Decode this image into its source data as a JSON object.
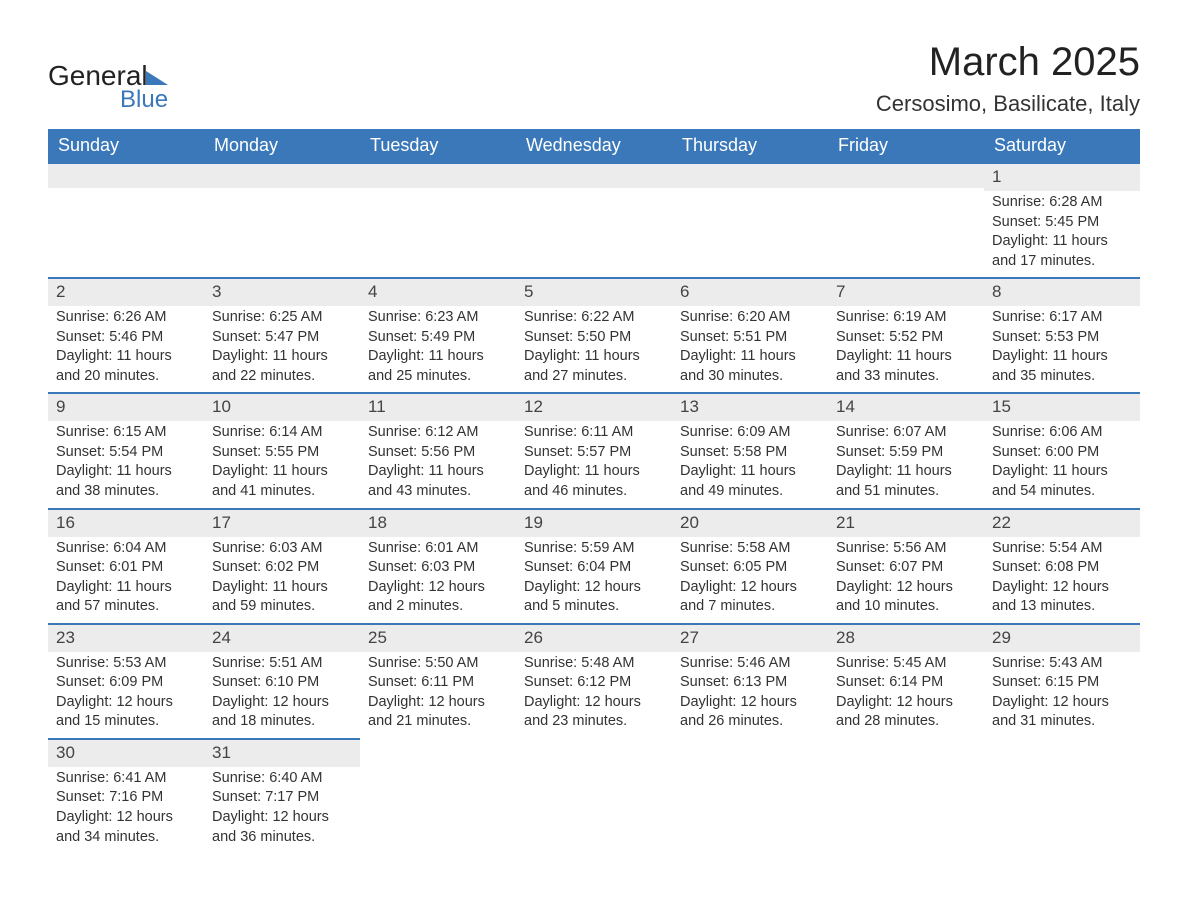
{
  "logo": {
    "main": "General",
    "sub": "Blue"
  },
  "title": "March 2025",
  "location": "Cersosimo, Basilicate, Italy",
  "colors": {
    "header_bg": "#3a78b9",
    "header_fg": "#ffffff",
    "row_sep": "#3a78b9",
    "daynum_bg": "#ececec",
    "text": "#333333",
    "page_bg": "#ffffff"
  },
  "typography": {
    "title_fontsize": 40,
    "location_fontsize": 22,
    "weekday_fontsize": 18,
    "daynum_fontsize": 17,
    "body_fontsize": 14.5
  },
  "weekdays": [
    "Sunday",
    "Monday",
    "Tuesday",
    "Wednesday",
    "Thursday",
    "Friday",
    "Saturday"
  ],
  "weeks": [
    [
      null,
      null,
      null,
      null,
      null,
      null,
      {
        "n": "1",
        "sr": "Sunrise: 6:28 AM",
        "ss": "Sunset: 5:45 PM",
        "d1": "Daylight: 11 hours",
        "d2": "and 17 minutes."
      }
    ],
    [
      {
        "n": "2",
        "sr": "Sunrise: 6:26 AM",
        "ss": "Sunset: 5:46 PM",
        "d1": "Daylight: 11 hours",
        "d2": "and 20 minutes."
      },
      {
        "n": "3",
        "sr": "Sunrise: 6:25 AM",
        "ss": "Sunset: 5:47 PM",
        "d1": "Daylight: 11 hours",
        "d2": "and 22 minutes."
      },
      {
        "n": "4",
        "sr": "Sunrise: 6:23 AM",
        "ss": "Sunset: 5:49 PM",
        "d1": "Daylight: 11 hours",
        "d2": "and 25 minutes."
      },
      {
        "n": "5",
        "sr": "Sunrise: 6:22 AM",
        "ss": "Sunset: 5:50 PM",
        "d1": "Daylight: 11 hours",
        "d2": "and 27 minutes."
      },
      {
        "n": "6",
        "sr": "Sunrise: 6:20 AM",
        "ss": "Sunset: 5:51 PM",
        "d1": "Daylight: 11 hours",
        "d2": "and 30 minutes."
      },
      {
        "n": "7",
        "sr": "Sunrise: 6:19 AM",
        "ss": "Sunset: 5:52 PM",
        "d1": "Daylight: 11 hours",
        "d2": "and 33 minutes."
      },
      {
        "n": "8",
        "sr": "Sunrise: 6:17 AM",
        "ss": "Sunset: 5:53 PM",
        "d1": "Daylight: 11 hours",
        "d2": "and 35 minutes."
      }
    ],
    [
      {
        "n": "9",
        "sr": "Sunrise: 6:15 AM",
        "ss": "Sunset: 5:54 PM",
        "d1": "Daylight: 11 hours",
        "d2": "and 38 minutes."
      },
      {
        "n": "10",
        "sr": "Sunrise: 6:14 AM",
        "ss": "Sunset: 5:55 PM",
        "d1": "Daylight: 11 hours",
        "d2": "and 41 minutes."
      },
      {
        "n": "11",
        "sr": "Sunrise: 6:12 AM",
        "ss": "Sunset: 5:56 PM",
        "d1": "Daylight: 11 hours",
        "d2": "and 43 minutes."
      },
      {
        "n": "12",
        "sr": "Sunrise: 6:11 AM",
        "ss": "Sunset: 5:57 PM",
        "d1": "Daylight: 11 hours",
        "d2": "and 46 minutes."
      },
      {
        "n": "13",
        "sr": "Sunrise: 6:09 AM",
        "ss": "Sunset: 5:58 PM",
        "d1": "Daylight: 11 hours",
        "d2": "and 49 minutes."
      },
      {
        "n": "14",
        "sr": "Sunrise: 6:07 AM",
        "ss": "Sunset: 5:59 PM",
        "d1": "Daylight: 11 hours",
        "d2": "and 51 minutes."
      },
      {
        "n": "15",
        "sr": "Sunrise: 6:06 AM",
        "ss": "Sunset: 6:00 PM",
        "d1": "Daylight: 11 hours",
        "d2": "and 54 minutes."
      }
    ],
    [
      {
        "n": "16",
        "sr": "Sunrise: 6:04 AM",
        "ss": "Sunset: 6:01 PM",
        "d1": "Daylight: 11 hours",
        "d2": "and 57 minutes."
      },
      {
        "n": "17",
        "sr": "Sunrise: 6:03 AM",
        "ss": "Sunset: 6:02 PM",
        "d1": "Daylight: 11 hours",
        "d2": "and 59 minutes."
      },
      {
        "n": "18",
        "sr": "Sunrise: 6:01 AM",
        "ss": "Sunset: 6:03 PM",
        "d1": "Daylight: 12 hours",
        "d2": "and 2 minutes."
      },
      {
        "n": "19",
        "sr": "Sunrise: 5:59 AM",
        "ss": "Sunset: 6:04 PM",
        "d1": "Daylight: 12 hours",
        "d2": "and 5 minutes."
      },
      {
        "n": "20",
        "sr": "Sunrise: 5:58 AM",
        "ss": "Sunset: 6:05 PM",
        "d1": "Daylight: 12 hours",
        "d2": "and 7 minutes."
      },
      {
        "n": "21",
        "sr": "Sunrise: 5:56 AM",
        "ss": "Sunset: 6:07 PM",
        "d1": "Daylight: 12 hours",
        "d2": "and 10 minutes."
      },
      {
        "n": "22",
        "sr": "Sunrise: 5:54 AM",
        "ss": "Sunset: 6:08 PM",
        "d1": "Daylight: 12 hours",
        "d2": "and 13 minutes."
      }
    ],
    [
      {
        "n": "23",
        "sr": "Sunrise: 5:53 AM",
        "ss": "Sunset: 6:09 PM",
        "d1": "Daylight: 12 hours",
        "d2": "and 15 minutes."
      },
      {
        "n": "24",
        "sr": "Sunrise: 5:51 AM",
        "ss": "Sunset: 6:10 PM",
        "d1": "Daylight: 12 hours",
        "d2": "and 18 minutes."
      },
      {
        "n": "25",
        "sr": "Sunrise: 5:50 AM",
        "ss": "Sunset: 6:11 PM",
        "d1": "Daylight: 12 hours",
        "d2": "and 21 minutes."
      },
      {
        "n": "26",
        "sr": "Sunrise: 5:48 AM",
        "ss": "Sunset: 6:12 PM",
        "d1": "Daylight: 12 hours",
        "d2": "and 23 minutes."
      },
      {
        "n": "27",
        "sr": "Sunrise: 5:46 AM",
        "ss": "Sunset: 6:13 PM",
        "d1": "Daylight: 12 hours",
        "d2": "and 26 minutes."
      },
      {
        "n": "28",
        "sr": "Sunrise: 5:45 AM",
        "ss": "Sunset: 6:14 PM",
        "d1": "Daylight: 12 hours",
        "d2": "and 28 minutes."
      },
      {
        "n": "29",
        "sr": "Sunrise: 5:43 AM",
        "ss": "Sunset: 6:15 PM",
        "d1": "Daylight: 12 hours",
        "d2": "and 31 minutes."
      }
    ],
    [
      {
        "n": "30",
        "sr": "Sunrise: 6:41 AM",
        "ss": "Sunset: 7:16 PM",
        "d1": "Daylight: 12 hours",
        "d2": "and 34 minutes."
      },
      {
        "n": "31",
        "sr": "Sunrise: 6:40 AM",
        "ss": "Sunset: 7:17 PM",
        "d1": "Daylight: 12 hours",
        "d2": "and 36 minutes."
      },
      null,
      null,
      null,
      null,
      null
    ]
  ]
}
